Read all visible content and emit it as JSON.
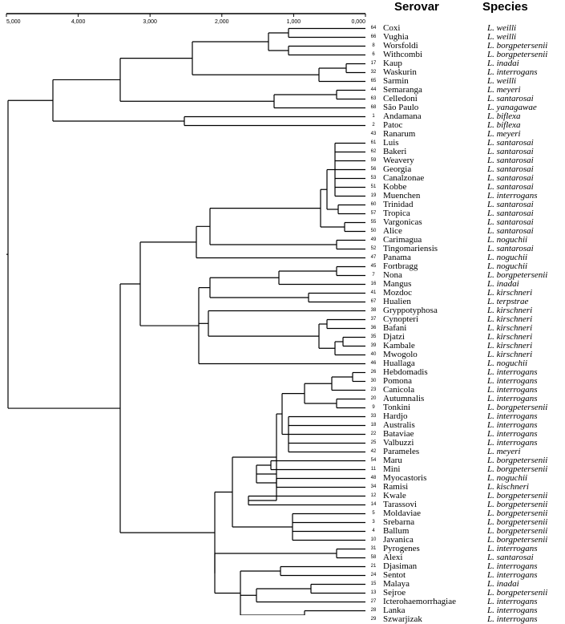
{
  "headers": {
    "serovar": "Serovar",
    "species": "Species"
  },
  "scale": {
    "ticks": [
      "5,000",
      "4,000",
      "3,000",
      "2,000",
      "1,000",
      "0,000"
    ]
  },
  "leaves": [
    {
      "num": "64",
      "serovar": "Coxi",
      "species": "L. weilli"
    },
    {
      "num": "66",
      "serovar": "Vughia",
      "species": "L. weilli"
    },
    {
      "num": "8",
      "serovar": "Worsfoldi",
      "species": "L. borgpetersenii"
    },
    {
      "num": "6",
      "serovar": "Withcombi",
      "species": "L. borgpetersenii"
    },
    {
      "num": "17",
      "serovar": "Kaup",
      "species": "L. inadai"
    },
    {
      "num": "32",
      "serovar": "Waskurin",
      "species": "L. interrogans"
    },
    {
      "num": "65",
      "serovar": "Sarmin",
      "species": "L. weilli"
    },
    {
      "num": "44",
      "serovar": "Semaranga",
      "species": "L. meyeri"
    },
    {
      "num": "63",
      "serovar": "Celledoni",
      "species": "L. santarosai"
    },
    {
      "num": "68",
      "serovar": "São Paulo",
      "species": "L. yanagawae"
    },
    {
      "num": "1",
      "serovar": "Andamana",
      "species": "L. biflexa"
    },
    {
      "num": "2",
      "serovar": "Patoc",
      "species": "L. biflexa"
    },
    {
      "num": "43",
      "serovar": "Ranarum",
      "species": "L. meyeri"
    },
    {
      "num": "61",
      "serovar": "Luis",
      "species": "L. santarosai"
    },
    {
      "num": "62",
      "serovar": "Bakeri",
      "species": "L. santarosai"
    },
    {
      "num": "59",
      "serovar": "Weavery",
      "species": "L. santarosai"
    },
    {
      "num": "56",
      "serovar": "Georgia",
      "species": "L. santarosai"
    },
    {
      "num": "53",
      "serovar": "Canalzonae",
      "species": "L. santarosai"
    },
    {
      "num": "51",
      "serovar": "Kobbe",
      "species": "L. santarosai"
    },
    {
      "num": "19",
      "serovar": "Muenchen",
      "species": "L. interrogans"
    },
    {
      "num": "60",
      "serovar": "Trinidad",
      "species": "L. santarosai"
    },
    {
      "num": "57",
      "serovar": "Tropica",
      "species": "L. santarosai"
    },
    {
      "num": "55",
      "serovar": "Vargonicas",
      "species": "L. santarosai"
    },
    {
      "num": "50",
      "serovar": "Alice",
      "species": "L. santarosai"
    },
    {
      "num": "49",
      "serovar": "Carimagua",
      "species": "L. noguchii"
    },
    {
      "num": "52",
      "serovar": "Tingomariensis",
      "species": "L. santarosai"
    },
    {
      "num": "47",
      "serovar": "Panama",
      "species": "L. noguchii"
    },
    {
      "num": "45",
      "serovar": "Fortbragg",
      "species": "L. noguchii"
    },
    {
      "num": "7",
      "serovar": "Nona",
      "species": "L. borgpetersenii"
    },
    {
      "num": "16",
      "serovar": "Mangus",
      "species": "L. inadai"
    },
    {
      "num": "41",
      "serovar": "Mozdoc",
      "species": "L. kirschneri"
    },
    {
      "num": "67",
      "serovar": "Hualien",
      "species": "L. terpstrae"
    },
    {
      "num": "38",
      "serovar": "Gryppotyphosa",
      "species": "L. kirschneri"
    },
    {
      "num": "37",
      "serovar": "Cynopteri",
      "species": "L. kirschneri"
    },
    {
      "num": "36",
      "serovar": "Bafani",
      "species": "L. kirschneri"
    },
    {
      "num": "35",
      "serovar": "Djatzi",
      "species": "L. kirschneri"
    },
    {
      "num": "39",
      "serovar": "Kambale",
      "species": "L. kirschneri"
    },
    {
      "num": "40",
      "serovar": "Mwogolo",
      "species": "L. kirschneri"
    },
    {
      "num": "46",
      "serovar": "Huallaga",
      "species": "L. noguchii"
    },
    {
      "num": "26",
      "serovar": "Hebdomadis",
      "species": "L. interrogans"
    },
    {
      "num": "30",
      "serovar": "Pomona",
      "species": "L. interrogans"
    },
    {
      "num": "23",
      "serovar": "Canicola",
      "species": "L. interrogans"
    },
    {
      "num": "20",
      "serovar": "Autumnalis",
      "species": "L. interrogans"
    },
    {
      "num": "9",
      "serovar": "Tonkini",
      "species": "L. borgpetersenii"
    },
    {
      "num": "33",
      "serovar": "Hardjo",
      "species": "L. interrogans"
    },
    {
      "num": "18",
      "serovar": "Australis",
      "species": "L. interrogans"
    },
    {
      "num": "22",
      "serovar": "Bataviae",
      "species": "L. interrogans"
    },
    {
      "num": "25",
      "serovar": "Valbuzzi",
      "species": "L. interrogans"
    },
    {
      "num": "42",
      "serovar": "Parameles",
      "species": "L. meyeri"
    },
    {
      "num": "54",
      "serovar": "Maru",
      "species": "L. borgpetersenii"
    },
    {
      "num": "11",
      "serovar": "Mini",
      "species": "L. borgpetersenii"
    },
    {
      "num": "48",
      "serovar": "Myocastoris",
      "species": "L. noguchii"
    },
    {
      "num": "34",
      "serovar": "Ramisi",
      "species": "L. kischneri"
    },
    {
      "num": "12",
      "serovar": "Kwale",
      "species": "L. borgpetersenii"
    },
    {
      "num": "14",
      "serovar": "Tarassovi",
      "species": "L. borgpetersenii"
    },
    {
      "num": "5",
      "serovar": "Moldaviae",
      "species": "L. borgpetersenii"
    },
    {
      "num": "3",
      "serovar": "Srebarna",
      "species": "L. borgpetersenii"
    },
    {
      "num": "4",
      "serovar": "Ballum",
      "species": "L. borgpetersenii"
    },
    {
      "num": "10",
      "serovar": "Javanica",
      "species": "L. borgpetersenii"
    },
    {
      "num": "31",
      "serovar": "Pyrogenes",
      "species": "L. interrogans"
    },
    {
      "num": "58",
      "serovar": "Alexi",
      "species": "L. santarosai"
    },
    {
      "num": "21",
      "serovar": "Djasiman",
      "species": "L. interrogans"
    },
    {
      "num": "24",
      "serovar": "Sentot",
      "species": "L. interrogans"
    },
    {
      "num": "15",
      "serovar": "Malaya",
      "species": "L. inadai"
    },
    {
      "num": "13",
      "serovar": "Sejroe",
      "species": "L. borgpetersenii"
    },
    {
      "num": "27",
      "serovar": "Icterohaemorrhagiae",
      "species": "L. interrogans"
    },
    {
      "num": "28",
      "serovar": "Lanka",
      "species": "L. interrogans"
    },
    {
      "num": "29",
      "serovar": "Szwarjizak",
      "species": "L. interrogans"
    }
  ]
}
